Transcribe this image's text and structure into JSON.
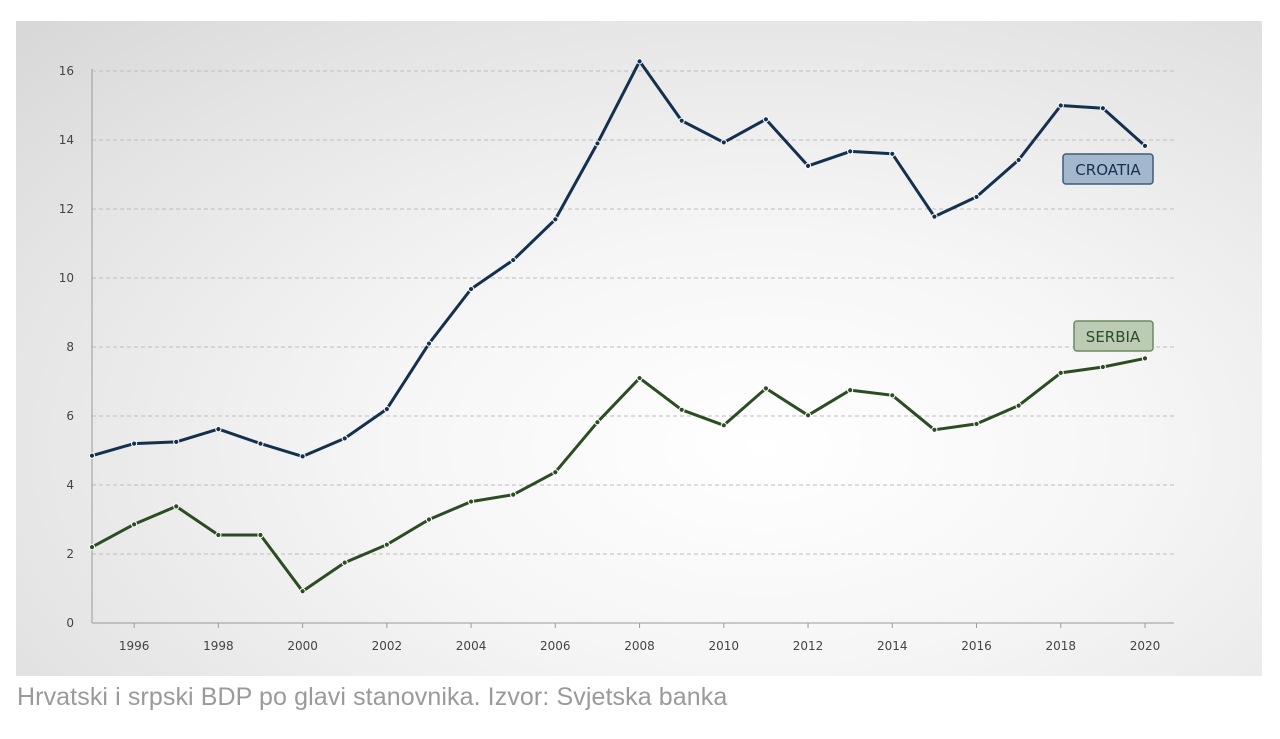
{
  "caption": "Hrvatski i srpski BDP po glavi stanovnika. Izvor: Svjetska banka",
  "colors": {
    "croatia_line": "#14304f",
    "croatia_tag_fill": "#a3b8cc",
    "croatia_tag_stroke": "#3e5a78",
    "serbia_line": "#2b4d22",
    "serbia_tag_fill": "#bccbb3",
    "serbia_tag_stroke": "#6a8a5c",
    "grid": "#bdbdbd",
    "axis": "#9a9a9a"
  },
  "chart_data": {
    "type": "line",
    "title": "",
    "xlabel": "",
    "ylabel": "",
    "x": [
      1995,
      1996,
      1997,
      1998,
      1999,
      2000,
      2001,
      2002,
      2003,
      2004,
      2005,
      2006,
      2007,
      2008,
      2009,
      2010,
      2011,
      2012,
      2013,
      2014,
      2015,
      2016,
      2017,
      2018,
      2019,
      2020
    ],
    "xticks": [
      1996,
      1998,
      2000,
      2002,
      2004,
      2006,
      2008,
      2010,
      2012,
      2014,
      2016,
      2018,
      2020
    ],
    "yticks": [
      0,
      2,
      4,
      6,
      8,
      10,
      12,
      14,
      16
    ],
    "xlim": [
      1995,
      2020
    ],
    "ylim": [
      0,
      16
    ],
    "grid": "horizontal dashed",
    "legend": "inline labels near line ends",
    "series": [
      {
        "name": "CROATIA",
        "values": [
          4.85,
          5.2,
          5.25,
          5.62,
          5.2,
          4.83,
          5.35,
          6.2,
          8.1,
          9.68,
          10.52,
          11.7,
          13.9,
          16.28,
          14.56,
          13.93,
          14.6,
          13.25,
          13.67,
          13.6,
          11.78,
          12.35,
          13.42,
          15.0,
          14.92,
          13.83
        ]
      },
      {
        "name": "SERBIA",
        "values": [
          2.2,
          2.86,
          3.38,
          2.55,
          2.55,
          0.92,
          1.75,
          2.27,
          3.0,
          3.52,
          3.72,
          4.37,
          5.82,
          7.1,
          6.18,
          5.73,
          6.8,
          6.02,
          6.75,
          6.6,
          5.6,
          5.77,
          6.3,
          7.25,
          7.42,
          7.67
        ]
      }
    ]
  }
}
